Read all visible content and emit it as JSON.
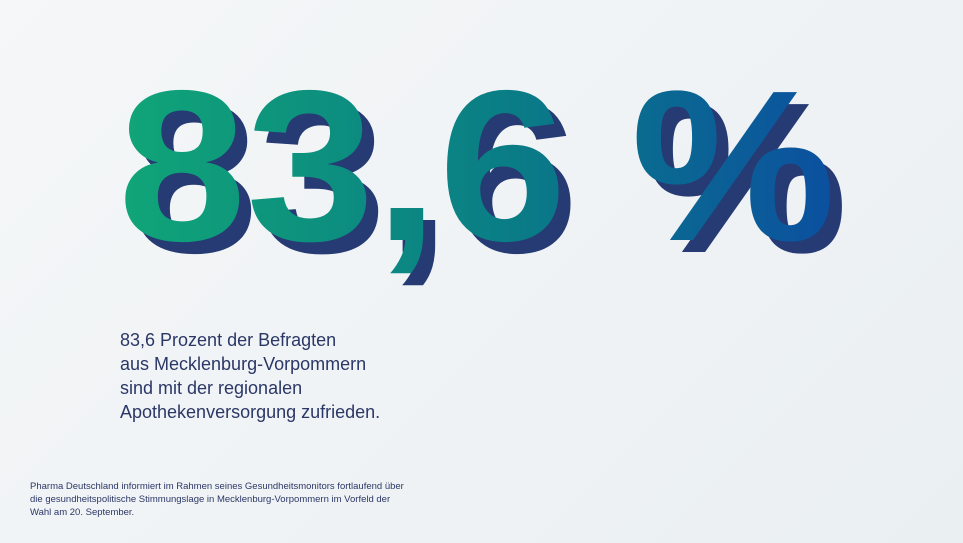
{
  "headline": {
    "value": "83,6 %"
  },
  "body": {
    "lines": [
      "83,6 Prozent der Befragten",
      "aus Mecklenburg-Vorpommern",
      "sind mit der regionalen",
      "Apothekenversorgung zufrieden."
    ]
  },
  "footer": {
    "lines": [
      "Pharma Deutschland informiert im Rahmen seines Gesundheitsmonitors fortlaufend über",
      "die gesundheitspolitische Stimmungslage in Mecklenburg-Vorpommern im Vorfeld der",
      "Wahl am 20. September."
    ]
  }
}
